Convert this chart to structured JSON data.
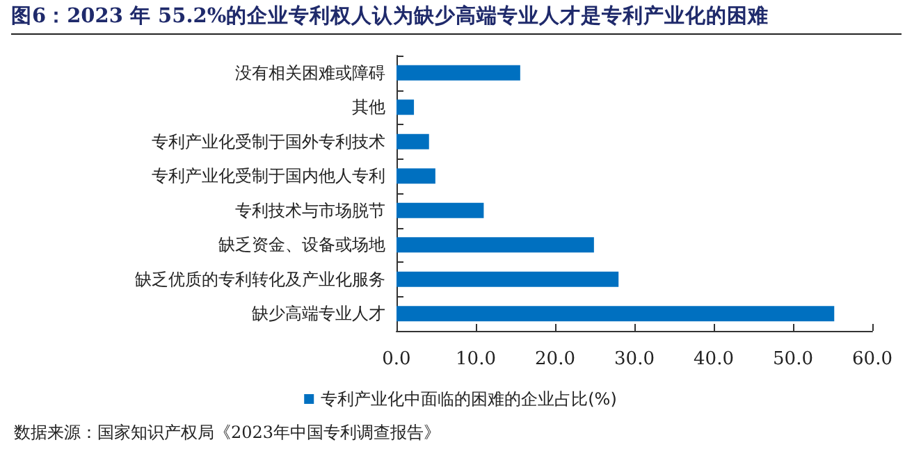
{
  "chart_data": {
    "type": "bar",
    "orientation": "horizontal",
    "title": "图6：2023 年 55.2%的企业专利权人认为缺少高端专业人才是专利产业化的困难",
    "categories": [
      "没有相关困难或障碍",
      "其他",
      "专利产业化受制于国外专利技术",
      "专利产业化受制于国内他人专利",
      "专利技术与市场脱节",
      "缺乏资金、设备或场地",
      "缺乏优质的专利转化及产业化服务",
      "缺少高端专业人才"
    ],
    "series": [
      {
        "name": "专利产业化中面临的困难的企业占比(%)",
        "color": "#0070c0",
        "values": [
          15.6,
          2.2,
          4.1,
          4.9,
          11.0,
          24.9,
          28.0,
          55.2
        ]
      }
    ],
    "xlim": [
      0,
      60
    ],
    "xticks": [
      {
        "value": 0,
        "label": "0.0"
      },
      {
        "value": 10,
        "label": "10.0"
      },
      {
        "value": 20,
        "label": "20.0"
      },
      {
        "value": 30,
        "label": "30.0"
      },
      {
        "value": 40,
        "label": "40.0"
      },
      {
        "value": 50,
        "label": "50.0"
      },
      {
        "value": 60,
        "label": "60.0"
      }
    ],
    "grid": false,
    "legend": "bottom",
    "annotations": [
      "数据来源：国家知识产权局《2023年中国专利调查报告》"
    ]
  }
}
